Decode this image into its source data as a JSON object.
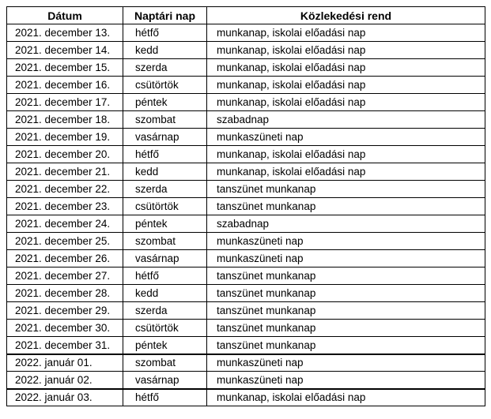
{
  "table": {
    "headers": [
      "Dátum",
      "Naptári nap",
      "Közlekedési rend"
    ],
    "colors": {
      "black": "#000000",
      "green": "#00A65A",
      "red": "#FF0000"
    },
    "rows": [
      {
        "date": "2021. december 13.",
        "day": "hétfő",
        "schedule": "munkanap, iskolai előadási nap",
        "color": "black"
      },
      {
        "date": "2021. december 14.",
        "day": "kedd",
        "schedule": "munkanap, iskolai előadási nap",
        "color": "black"
      },
      {
        "date": "2021. december 15.",
        "day": "szerda",
        "schedule": "munkanap, iskolai előadási nap",
        "color": "black"
      },
      {
        "date": "2021. december 16.",
        "day": "csütörtök",
        "schedule": "munkanap, iskolai előadási nap",
        "color": "black"
      },
      {
        "date": "2021. december 17.",
        "day": "péntek",
        "schedule": "munkanap, iskolai előadási nap",
        "color": "black"
      },
      {
        "date": "2021. december 18.",
        "day": "szombat",
        "schedule": "szabadnap",
        "color": "green"
      },
      {
        "date": "2021. december 19.",
        "day": "vasárnap",
        "schedule": "munkaszüneti nap",
        "color": "red"
      },
      {
        "date": "2021. december 20.",
        "day": "hétfő",
        "schedule": "munkanap, iskolai előadási nap",
        "color": "black"
      },
      {
        "date": "2021. december 21.",
        "day": "kedd",
        "schedule": "munkanap, iskolai előadási nap",
        "color": "black"
      },
      {
        "date": "2021. december 22.",
        "day": "szerda",
        "schedule": "tanszünet munkanap",
        "color": "black"
      },
      {
        "date": "2021. december 23.",
        "day": "csütörtök",
        "schedule": "tanszünet munkanap",
        "color": "black"
      },
      {
        "date": "2021. december 24.",
        "day": "péntek",
        "schedule": "szabadnap",
        "color": "green"
      },
      {
        "date": "2021. december 25.",
        "day": "szombat",
        "schedule": "munkaszüneti nap",
        "color": "red"
      },
      {
        "date": "2021. december 26.",
        "day": "vasárnap",
        "schedule": "munkaszüneti nap",
        "color": "red"
      },
      {
        "date": "2021. december 27.",
        "day": "hétfő",
        "schedule": "tanszünet munkanap",
        "color": "black"
      },
      {
        "date": "2021. december 28.",
        "day": "kedd",
        "schedule": "tanszünet munkanap",
        "color": "black"
      },
      {
        "date": "2021. december 29.",
        "day": "szerda",
        "schedule": "tanszünet munkanap",
        "color": "black"
      },
      {
        "date": "2021. december 30.",
        "day": "csütörtök",
        "schedule": "tanszünet munkanap",
        "color": "black"
      },
      {
        "date": "2021. december 31.",
        "day": "péntek",
        "schedule": "tanszünet munkanap",
        "color": "black"
      },
      {
        "date": "2022. január 01.",
        "day": "szombat",
        "schedule": "munkaszüneti nap",
        "color": "red",
        "thick_top": true
      },
      {
        "date": "2022. január 02.",
        "day": "vasárnap",
        "schedule": "munkaszüneti nap",
        "color": "red"
      },
      {
        "date": "2022. január 03.",
        "day": "hétfő",
        "schedule": "munkanap, iskolai előadási nap",
        "color": "black",
        "thick_top": true
      }
    ]
  }
}
